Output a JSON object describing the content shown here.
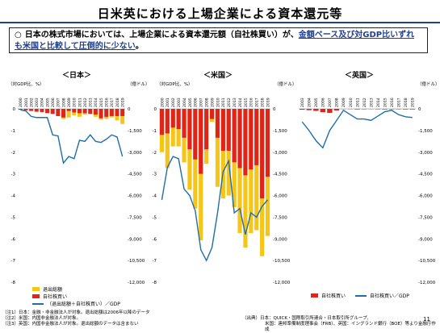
{
  "title": "日米英における上場企業による資本還元等",
  "summary": {
    "bullet": "○",
    "prefix": "日本の株式市場においては、上場企業による資本還元額（自社株買い）が、",
    "emphasis": "金額ベース及び対GDP比いずれも米国と比較して圧倒的に少ない",
    "suffix": "。"
  },
  "panels": {
    "japan": {
      "title": "＜日本＞",
      "left_unit": "（対GDP比、%）",
      "right_unit": "（億ドル）"
    },
    "us": {
      "title": "＜米国＞",
      "left_unit": "（対GDP比、%）",
      "right_unit": "（億ドル）"
    },
    "uk": {
      "title": "＜英国＞",
      "right_unit": "（億ドル）"
    }
  },
  "legends": {
    "left": {
      "item1": "退出総額",
      "item2": "自社株買い",
      "item3": "（退出総額＋自社株買い）／GDP"
    },
    "right": {
      "item1": "自社株買い",
      "item2": "自社株買い／GDP"
    }
  },
  "notes": {
    "left": [
      "（注1）日本：金融・非金融法人が対象。退出総額は2006年以降のデータ",
      "（注2）米国：内国非金融法人が対象。",
      "（注3）英国：内国非金融法人が対象。退出総額のデータは含まない"
    ],
    "right": [
      "（出典）日本：QUICK・国際取引所連合・日本取引所グループ、",
      "米国：連邦準備制度理事会（FRB）、英国：イングランド銀行（BOE）等より金融庁作成"
    ]
  },
  "page_number": "11",
  "colors": {
    "exit": "#f5c518",
    "buyback": "#e2231a",
    "ratio_line": "#1f6ea8",
    "title_rule": "#1f3f8f"
  },
  "chart_data": [
    {
      "type": "bar",
      "name": "japan",
      "categories": [
        "2000",
        "2001",
        "2002",
        "2003",
        "2004",
        "2005",
        "2006",
        "2007",
        "2008",
        "2009",
        "2010",
        "2011",
        "2012",
        "2013",
        "2014",
        "2015",
        "2016",
        "2017",
        "2018",
        "2019"
      ],
      "x_tick_labels": [
        "2000",
        "2001",
        "2002",
        "2003",
        "2004",
        "2005",
        "2006",
        "2007",
        "2008",
        "2009",
        "2010",
        "2011",
        "2012",
        "2013",
        "2014",
        "2015",
        "2016",
        "2017",
        "2018",
        "2019"
      ],
      "left_axis": {
        "ticks": [
          0,
          -1,
          -2,
          -3,
          -4,
          -5,
          -6,
          -7,
          -8
        ],
        "tick_labels": [
          "0",
          "-1",
          "-2",
          "-3",
          "-4",
          "-5",
          "-6",
          "-7",
          "-8"
        ],
        "ylim": [
          -8,
          0
        ]
      },
      "right_axis": {
        "ticks": [
          0,
          -1500,
          -3000,
          -4500,
          -6000,
          -7500,
          -9000,
          -10500,
          -12000
        ],
        "tick_labels": [
          "0",
          "-1,500",
          "-3,000",
          "-4,500",
          "-6,000",
          "-7,500",
          "-9,000",
          "-10,500",
          "-12,000"
        ],
        "ylim": [
          -12000,
          0
        ]
      },
      "series": [
        {
          "name": "退出総額",
          "axis": "right",
          "values": [
            0,
            0,
            0,
            0,
            0,
            0,
            -350,
            -500,
            -700,
            -600,
            -450,
            -550,
            -400,
            -350,
            -550,
            -750,
            -700,
            -600,
            -800,
            -1050
          ]
        },
        {
          "name": "自社株買い",
          "axis": "right",
          "values": [
            -60,
            -100,
            -150,
            -200,
            -220,
            -300,
            -350,
            -500,
            -600,
            -150,
            -250,
            -300,
            -300,
            -350,
            -400,
            -650,
            -550,
            -500,
            -500,
            -500
          ]
        },
        {
          "name": "（退出総額＋自社株買い）／GDP",
          "axis": "left",
          "values": [
            -0.05,
            -0.1,
            -0.35,
            -0.4,
            -0.4,
            -0.4,
            -1.2,
            -1.25,
            -2.5,
            -2.2,
            -2.3,
            -1.45,
            -1.5,
            -1.2,
            -1.5,
            -1.55,
            -1.4,
            -1.2,
            -1.3,
            -2.2
          ]
        }
      ]
    },
    {
      "type": "bar",
      "name": "us",
      "categories": [
        "2000",
        "2001",
        "2002",
        "2003",
        "2004",
        "2005",
        "2006",
        "2007",
        "2008",
        "2009",
        "2010",
        "2011",
        "2012",
        "2013",
        "2014",
        "2015",
        "2016",
        "2017",
        "2018",
        "2019"
      ],
      "x_tick_labels": [
        "2000",
        "2001",
        "2002",
        "2003",
        "2004",
        "2005",
        "2006",
        "2007",
        "2008",
        "2009",
        "2010",
        "2011",
        "2012",
        "2013",
        "2014",
        "2015",
        "2016",
        "2017",
        "2018",
        "2019"
      ],
      "left_axis": {
        "ticks": [
          0,
          -1,
          -2,
          -3,
          -4,
          -5,
          -6,
          -7,
          -8
        ],
        "tick_labels": [
          "0",
          "-1",
          "-2",
          "-3",
          "-4",
          "-5",
          "-6",
          "-7",
          "-8"
        ],
        "ylim": [
          -8,
          0
        ]
      },
      "right_axis": {
        "ticks": [
          0,
          -1500,
          -3000,
          -4500,
          -6000,
          -7500,
          -9000,
          -10500,
          -12000
        ],
        "tick_labels": [
          "0",
          "-1,500",
          "-3,000",
          "-4,500",
          "-6,000",
          "-7,500",
          "-9,000",
          "-10,500",
          "-12,000"
        ],
        "ylim": [
          -12000,
          0
        ]
      },
      "series": [
        {
          "name": "退出総額",
          "axis": "right",
          "values": [
            -3000,
            -4100,
            -2600,
            -2600,
            -3700,
            -5600,
            -6900,
            -9100,
            -3800,
            -900,
            -5400,
            -6200,
            -6000,
            -6800,
            -8600,
            -9600,
            -8600,
            -8400,
            -10200,
            -8800
          ]
        },
        {
          "name": "自社株買い",
          "axis": "right",
          "values": [
            -1800,
            -1700,
            -1300,
            -1400,
            -2000,
            -2800,
            -3500,
            -4500,
            -2800,
            -700,
            -2000,
            -2900,
            -2900,
            -3700,
            -4100,
            -4600,
            -4200,
            -3900,
            -6200,
            -4700
          ]
        },
        {
          "name": "（退出総額＋自社株買い）／GDP",
          "axis": "left",
          "values": [
            -4.2,
            -2.7,
            -2.2,
            -2.3,
            -3.7,
            -4.0,
            -4.7,
            -6.5,
            -7.0,
            -6.4,
            -4.8,
            -2.9,
            -2.4,
            -4.8,
            -4.6,
            -5.8,
            -4.8,
            -5.0,
            -4.5,
            -4.2
          ]
        }
      ]
    },
    {
      "type": "bar",
      "name": "uk",
      "categories": [
        "2003",
        "2004",
        "2005",
        "2006",
        "2007",
        "2008",
        "2009",
        "2010",
        "2011",
        "2012",
        "2013",
        "2014",
        "2015",
        "2016",
        "2017",
        "2018",
        "2019"
      ],
      "x_tick_labels": [
        "2003",
        "2004",
        "2005",
        "2006",
        "2007",
        "2008",
        "2009",
        "2010",
        "2011",
        "2012",
        "2013",
        "2014",
        "2015",
        "2016",
        "2017",
        "2018",
        "2019"
      ],
      "right_axis": {
        "ticks": [
          0,
          -1500,
          -3000,
          -4500,
          -6000,
          -7500,
          -9000,
          -10500,
          -12000
        ],
        "tick_labels": [
          "0",
          "-1,500",
          "-3,000",
          "-4,500",
          "-6,000",
          "-7,500",
          "-9,000",
          "-10,500",
          "-12,000"
        ],
        "ylim": [
          -12000,
          0
        ]
      },
      "series": [
        {
          "name": "自社株買い",
          "axis": "right",
          "values": [
            -60,
            -90,
            -140,
            -230,
            -280,
            -110,
            -10,
            -20,
            -40,
            -30,
            -20,
            -30,
            -40,
            -30,
            -30,
            -40,
            -40
          ]
        },
        {
          "name": "自社株買い／GDP",
          "axis": "right",
          "values": [
            -900,
            -1500,
            -2200,
            -2700,
            -1500,
            -800,
            -100,
            -400,
            -700,
            -700,
            -800,
            -500,
            -200,
            -100,
            -400,
            -550,
            -600
          ]
        }
      ]
    }
  ]
}
